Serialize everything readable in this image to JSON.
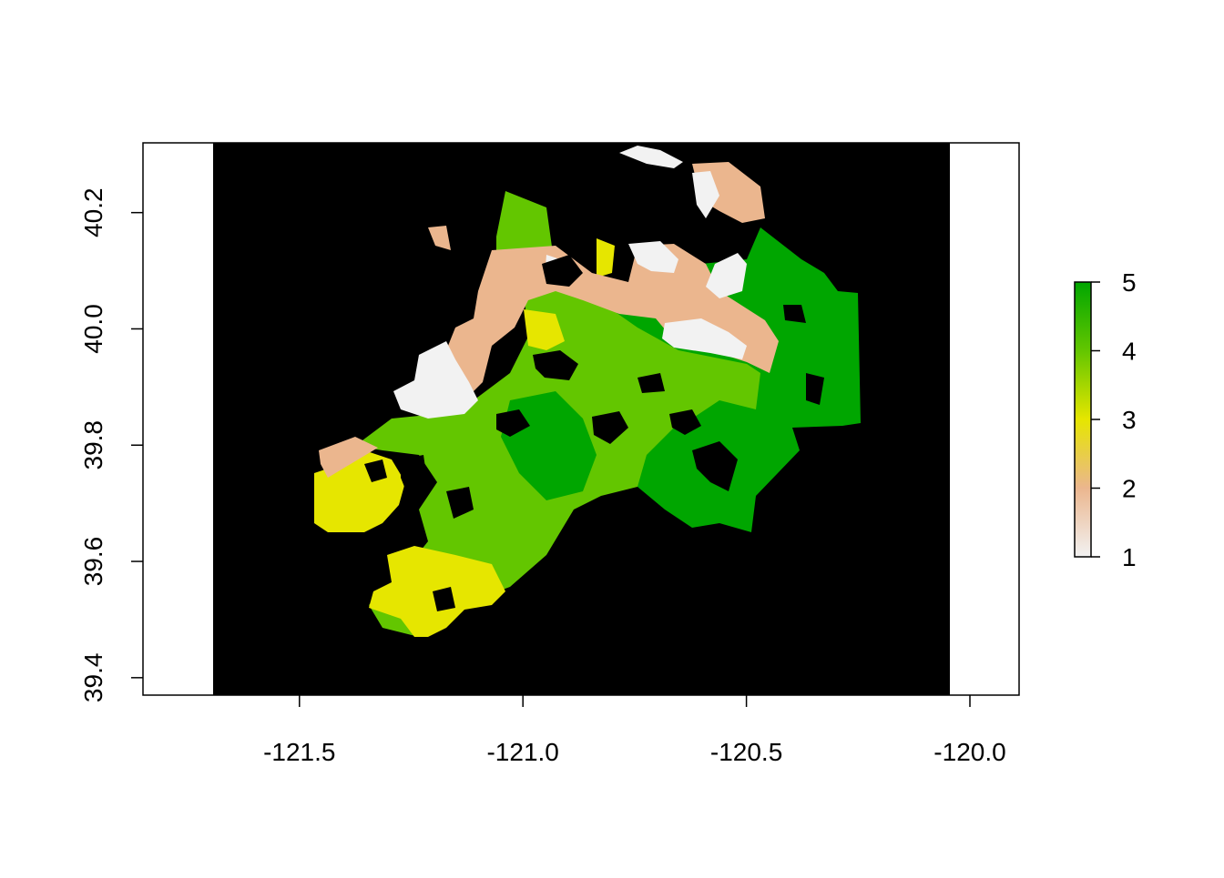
{
  "chart_data": {
    "type": "heatmap",
    "title": "",
    "xlabel": "",
    "ylabel": "",
    "xlim": [
      -121.85,
      -119.89
    ],
    "ylim": [
      39.37,
      40.32
    ],
    "raster_xlim": [
      -121.69,
      -120.04
    ],
    "x_ticks": [
      -121.5,
      -121.0,
      -120.5,
      -120.0
    ],
    "x_tick_labels": [
      "-121.5",
      "-121.0",
      "-120.5",
      "-120.0"
    ],
    "y_ticks": [
      39.4,
      39.6,
      39.8,
      40.0,
      40.2
    ],
    "y_tick_labels": [
      "39.4",
      "39.6",
      "39.8",
      "40.0",
      "40.2"
    ],
    "background_value_color": "#000000",
    "legend": {
      "position": "right",
      "min": 1,
      "max": 5,
      "ticks": [
        1,
        2,
        3,
        4,
        5
      ],
      "tick_labels": [
        "1",
        "2",
        "3",
        "4",
        "5"
      ],
      "colors": [
        "#F2F2F2",
        "#EBB68E",
        "#E6E600",
        "#63C600",
        "#00A600"
      ]
    },
    "classes": [
      {
        "value": 1,
        "color": "#F2F2F2"
      },
      {
        "value": 2,
        "color": "#EBB68E"
      },
      {
        "value": 3,
        "color": "#E6E600"
      },
      {
        "value": 4,
        "color": "#63C600"
      },
      {
        "value": 5,
        "color": "#00A600"
      }
    ]
  }
}
